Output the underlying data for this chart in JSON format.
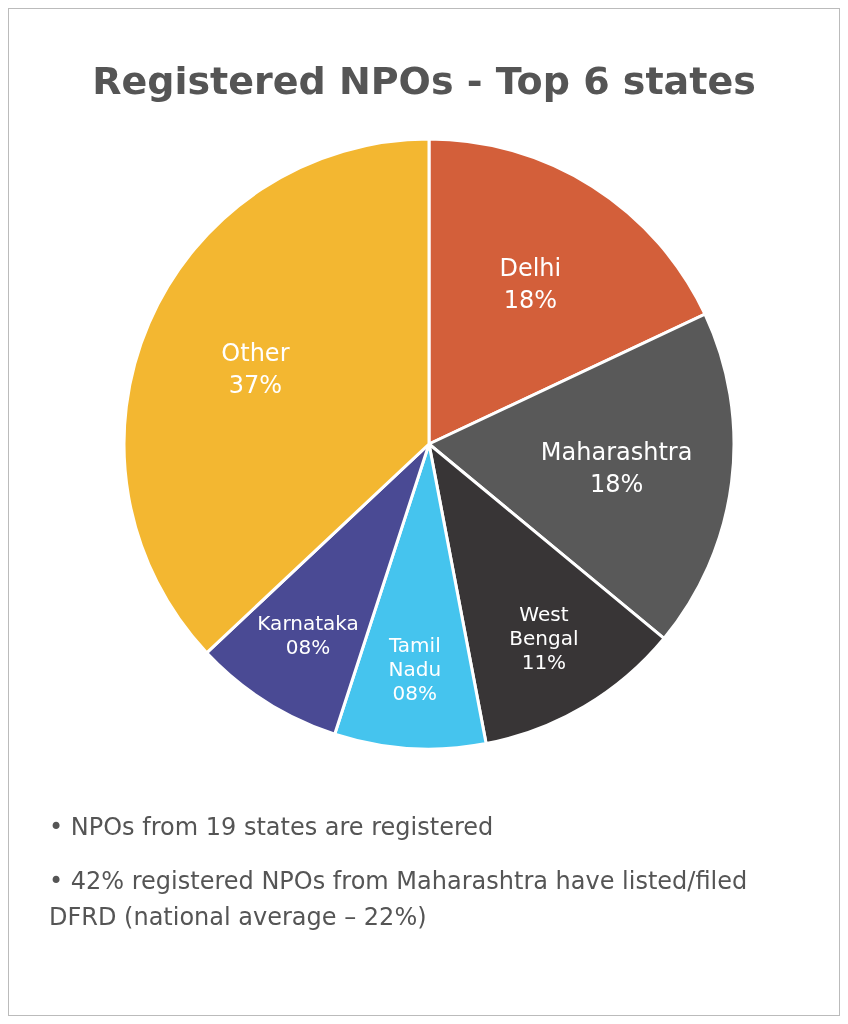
{
  "chart_data": {
    "type": "pie",
    "title": "Registered NPOs - Top 6 states",
    "categories": [
      "Delhi",
      "Maharashtra",
      "West Bengal",
      "Tamil Nadu",
      "Karnataka",
      "Other"
    ],
    "values": [
      18,
      18,
      11,
      8,
      8,
      37
    ],
    "value_labels": [
      "18%",
      "18%",
      "11%",
      "08%",
      "08%",
      "37%"
    ],
    "colors": [
      "#d35f3a",
      "#595959",
      "#383536",
      "#45c4ee",
      "#4a4a94",
      "#f3b731"
    ],
    "legend": false,
    "annotations": [
      "• NPOs from 19 states are registered",
      "• 42% registered NPOs from Maharashtra have listed/filed DFRD (national average – 22%)"
    ]
  }
}
